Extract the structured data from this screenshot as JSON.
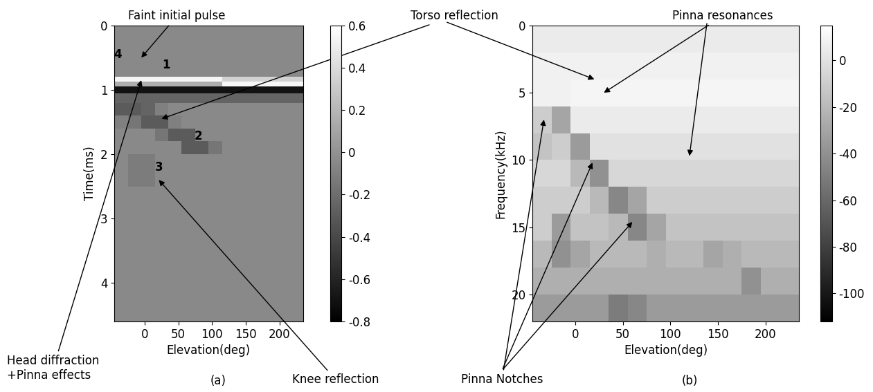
{
  "chart_data": [
    {
      "type": "heatmap",
      "panel_label": "(a)",
      "xlabel": "Elevation(deg)",
      "ylabel": "Time(ms)",
      "color": "gray",
      "xlim": [
        -45,
        235
      ],
      "ylim": [
        4.6,
        0
      ],
      "xticks": [
        0,
        50,
        100,
        150,
        200
      ],
      "yticks": [
        0,
        1,
        2,
        3,
        4
      ],
      "x_edges": [
        -45,
        -25,
        -5,
        15,
        35,
        55,
        75,
        95,
        115,
        135,
        155,
        175,
        195,
        215,
        235
      ],
      "y_edges": [
        0,
        0.8,
        0.87,
        0.95,
        1.05,
        1.2,
        1.4,
        1.6,
        1.8,
        2.0,
        2.5,
        4.6
      ],
      "cells": [
        [
          -0.05,
          -0.05,
          -0.05,
          -0.05,
          -0.05,
          -0.05,
          -0.05,
          -0.05,
          -0.05,
          -0.05,
          -0.05,
          -0.05,
          -0.05,
          -0.05
        ],
        [
          0.55,
          0.55,
          0.55,
          0.55,
          0.55,
          0.55,
          0.55,
          0.55,
          0.35,
          0.35,
          0.35,
          0.35,
          0.35,
          0.35
        ],
        [
          0.15,
          0.15,
          0.15,
          0.15,
          0.15,
          0.15,
          0.15,
          0.15,
          0.55,
          0.55,
          0.55,
          0.55,
          0.55,
          0.55
        ],
        [
          -0.7,
          -0.7,
          -0.7,
          -0.7,
          -0.7,
          -0.7,
          -0.7,
          -0.7,
          -0.7,
          -0.7,
          -0.7,
          -0.7,
          -0.7,
          -0.7
        ],
        [
          -0.25,
          -0.25,
          -0.25,
          -0.25,
          -0.25,
          -0.25,
          -0.25,
          -0.25,
          -0.25,
          -0.25,
          -0.25,
          -0.25,
          -0.25,
          -0.25
        ],
        [
          -0.3,
          -0.3,
          -0.25,
          -0.1,
          -0.05,
          -0.05,
          -0.05,
          -0.05,
          -0.05,
          -0.05,
          -0.05,
          -0.05,
          -0.05,
          -0.05
        ],
        [
          -0.1,
          -0.15,
          -0.3,
          -0.3,
          -0.1,
          -0.05,
          -0.05,
          -0.05,
          -0.05,
          -0.05,
          -0.05,
          -0.05,
          -0.05,
          -0.05
        ],
        [
          -0.05,
          -0.05,
          -0.05,
          -0.15,
          -0.3,
          -0.3,
          -0.05,
          -0.05,
          -0.05,
          -0.05,
          -0.05,
          -0.05,
          -0.05,
          -0.05
        ],
        [
          -0.05,
          -0.05,
          -0.05,
          -0.05,
          -0.05,
          -0.3,
          -0.3,
          -0.15,
          -0.05,
          -0.05,
          -0.05,
          -0.05,
          -0.05,
          -0.05
        ],
        [
          -0.05,
          -0.12,
          -0.12,
          -0.05,
          -0.05,
          -0.05,
          -0.05,
          -0.05,
          -0.05,
          -0.05,
          -0.05,
          -0.05,
          -0.05,
          -0.05
        ],
        [
          -0.05,
          -0.05,
          -0.05,
          -0.05,
          -0.05,
          -0.05,
          -0.05,
          -0.05,
          -0.05,
          -0.05,
          -0.05,
          -0.05,
          -0.05,
          -0.05
        ]
      ],
      "colorbar": {
        "range": [
          -0.8,
          0.6
        ],
        "ticks": [
          -0.8,
          -0.6,
          -0.4,
          -0.2,
          0,
          0.2,
          0.4,
          0.6
        ]
      },
      "annotations": [
        "Faint initial pulse",
        "Torso reflection",
        "Head diffraction\n+Pinna effects",
        "Knee reflection",
        "1",
        "2",
        "3",
        "4"
      ]
    },
    {
      "type": "heatmap",
      "panel_label": "(b)",
      "xlabel": "Elevation(deg)",
      "ylabel": "Frequency(kHz)",
      "color": "gray",
      "xlim": [
        -45,
        235
      ],
      "ylim": [
        22,
        0
      ],
      "xticks": [
        0,
        50,
        100,
        150,
        200
      ],
      "yticks": [
        0,
        5,
        10,
        15,
        20
      ],
      "x_edges": [
        -45,
        -25,
        -5,
        15,
        35,
        55,
        75,
        95,
        115,
        135,
        155,
        175,
        195,
        215,
        235
      ],
      "y_edges": [
        0,
        2,
        4,
        6,
        8,
        10,
        12,
        14,
        16,
        18,
        20,
        22
      ],
      "cells": [
        [
          5,
          5,
          5,
          5,
          5,
          5,
          5,
          5,
          5,
          5,
          5,
          5,
          5,
          5
        ],
        [
          8,
          8,
          8,
          8,
          8,
          8,
          8,
          8,
          8,
          8,
          8,
          8,
          8,
          8
        ],
        [
          8,
          8,
          10,
          10,
          10,
          10,
          10,
          10,
          10,
          10,
          10,
          10,
          10,
          10
        ],
        [
          -10,
          -30,
          5,
          5,
          5,
          5,
          5,
          5,
          5,
          5,
          5,
          5,
          5,
          5
        ],
        [
          -15,
          -10,
          -35,
          0,
          0,
          0,
          0,
          0,
          0,
          0,
          0,
          0,
          0,
          0
        ],
        [
          -5,
          -5,
          -20,
          -40,
          -5,
          -5,
          -5,
          -5,
          -5,
          -5,
          -5,
          -5,
          -5,
          -5
        ],
        [
          -10,
          -10,
          -10,
          -20,
          -45,
          -30,
          -10,
          -10,
          -10,
          -10,
          -10,
          -10,
          -10,
          -10
        ],
        [
          -10,
          -35,
          -15,
          -15,
          -20,
          -45,
          -30,
          -15,
          -15,
          -15,
          -15,
          -15,
          -15,
          -15
        ],
        [
          -20,
          -40,
          -30,
          -20,
          -20,
          -20,
          -25,
          -20,
          -20,
          -30,
          -25,
          -20,
          -20,
          -20
        ],
        [
          -25,
          -25,
          -25,
          -25,
          -25,
          -25,
          -25,
          -25,
          -25,
          -25,
          -25,
          -40,
          -25,
          -25
        ],
        [
          -35,
          -35,
          -35,
          -35,
          -50,
          -45,
          -35,
          -35,
          -35,
          -35,
          -35,
          -35,
          -35,
          -35
        ]
      ],
      "colorbar": {
        "range": [
          -112,
          15
        ],
        "ticks": [
          -100,
          -80,
          -60,
          -40,
          -20,
          0
        ]
      },
      "annotations": [
        "Pinna resonances",
        "Pinna Notches"
      ]
    }
  ]
}
